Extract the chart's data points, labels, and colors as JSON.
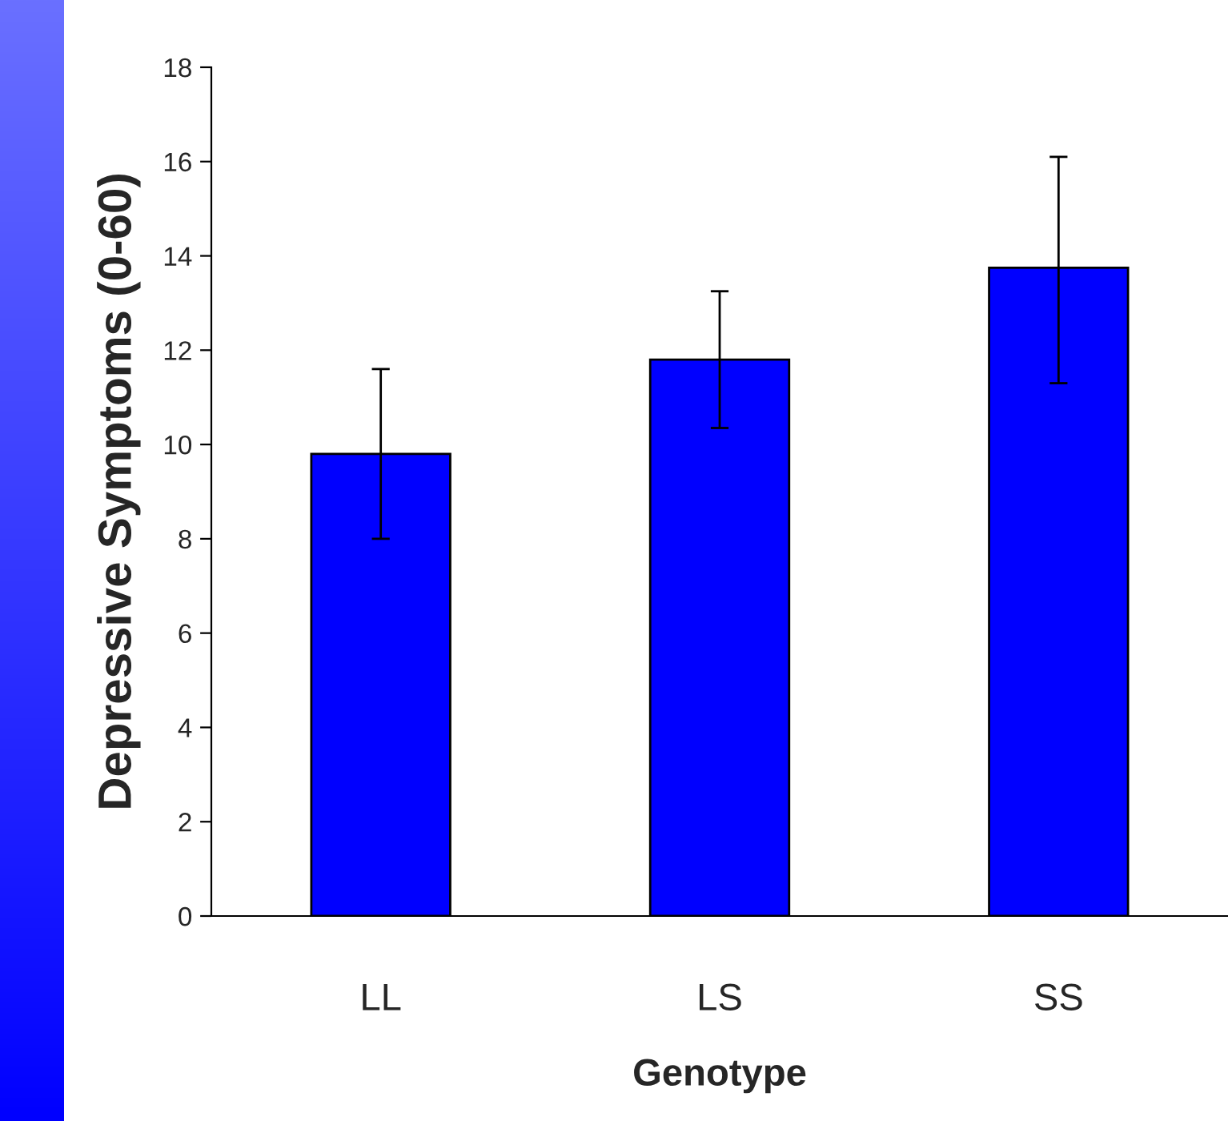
{
  "chart_data": {
    "type": "bar",
    "xlabel": "Genotype",
    "ylabel": "Depressive Symptoms (0-60)",
    "categories": [
      "LL",
      "LS",
      "SS"
    ],
    "values": [
      9.8,
      11.8,
      13.75
    ],
    "errors": [
      [
        8.0,
        11.6
      ],
      [
        10.35,
        13.25
      ],
      [
        11.3,
        16.1
      ]
    ],
    "color": "#0000ff",
    "ylim": [
      0,
      18
    ],
    "yticks": [
      0,
      2,
      4,
      6,
      8,
      10,
      12,
      14,
      16,
      18
    ],
    "grid": false,
    "legend": false
  }
}
